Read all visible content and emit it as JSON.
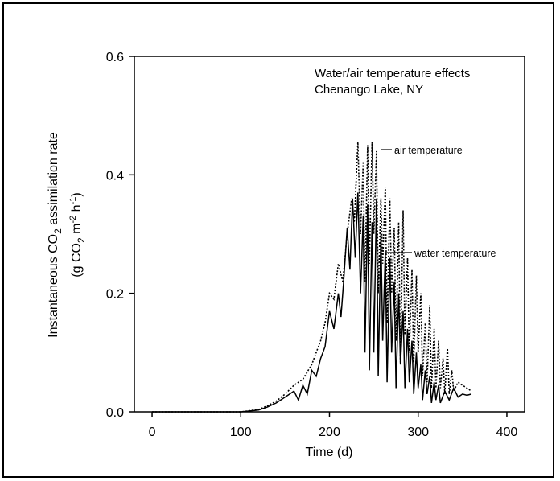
{
  "chart_data": {
    "type": "line",
    "title_lines": [
      "Water/air temperature effects",
      "Chenango Lake, NY"
    ],
    "xlabel": "Time (d)",
    "ylabel_line1": {
      "pre": "Instantaneous CO",
      "sub": "2",
      "post": " assimilation rate"
    },
    "ylabel_line2": {
      "a": "(g CO",
      "sub": "2",
      "b": " m",
      "sup1": "-2",
      "c": " h",
      "sup2": "-1",
      "d": ")"
    },
    "xlim": [
      -20,
      420
    ],
    "ylim": [
      0,
      0.6
    ],
    "xticks": [
      "0",
      "100",
      "200",
      "300",
      "400"
    ],
    "xtick_values": [
      0,
      100,
      200,
      300,
      400
    ],
    "yticks": [
      "0.0",
      "0.2",
      "0.4",
      "0.6"
    ],
    "ytick_values": [
      0,
      0.2,
      0.4,
      0.6
    ],
    "annotations": [
      "air temperature",
      "water temperature"
    ],
    "series": [
      {
        "style": "dotted",
        "color": "#000000",
        "x": [
          0,
          100,
          120,
          130,
          140,
          150,
          160,
          170,
          180,
          185,
          190,
          195,
          200,
          205,
          210,
          215,
          220,
          225,
          228,
          232,
          235,
          238,
          240,
          243,
          245,
          248,
          250,
          253,
          255,
          258,
          260,
          263,
          265,
          268,
          270,
          273,
          275,
          278,
          280,
          283,
          285,
          288,
          290,
          293,
          295,
          298,
          300,
          303,
          305,
          308,
          310,
          313,
          315,
          318,
          320,
          323,
          325,
          328,
          330,
          333,
          335,
          338,
          340,
          345,
          350,
          355,
          360
        ],
        "y": [
          0,
          0,
          0.004,
          0.01,
          0.018,
          0.03,
          0.045,
          0.055,
          0.08,
          0.1,
          0.12,
          0.15,
          0.2,
          0.19,
          0.25,
          0.22,
          0.3,
          0.36,
          0.32,
          0.455,
          0.3,
          0.42,
          0.22,
          0.45,
          0.25,
          0.455,
          0.3,
          0.44,
          0.2,
          0.36,
          0.25,
          0.38,
          0.15,
          0.36,
          0.2,
          0.31,
          0.12,
          0.32,
          0.08,
          0.34,
          0.13,
          0.26,
          0.1,
          0.24,
          0.08,
          0.23,
          0.1,
          0.2,
          0.06,
          0.15,
          0.05,
          0.18,
          0.04,
          0.14,
          0.04,
          0.12,
          0.04,
          0.09,
          0.03,
          0.11,
          0.03,
          0.07,
          0.035,
          0.05,
          0.045,
          0.04,
          0.035
        ]
      },
      {
        "style": "solid",
        "color": "#000000",
        "x": [
          0,
          100,
          120,
          130,
          140,
          150,
          160,
          165,
          170,
          175,
          180,
          185,
          190,
          195,
          200,
          205,
          210,
          213,
          216,
          220,
          223,
          226,
          229,
          232,
          235,
          238,
          240,
          243,
          245,
          248,
          250,
          253,
          255,
          258,
          260,
          263,
          265,
          268,
          270,
          273,
          275,
          278,
          280,
          283,
          285,
          288,
          290,
          293,
          295,
          298,
          300,
          303,
          305,
          308,
          310,
          313,
          315,
          318,
          320,
          323,
          325,
          330,
          335,
          340,
          345,
          350,
          355,
          360
        ],
        "y": [
          0,
          0,
          0.003,
          0.008,
          0.015,
          0.025,
          0.035,
          0.02,
          0.045,
          0.03,
          0.07,
          0.06,
          0.09,
          0.11,
          0.17,
          0.14,
          0.2,
          0.16,
          0.22,
          0.31,
          0.24,
          0.36,
          0.26,
          0.37,
          0.2,
          0.33,
          0.1,
          0.35,
          0.07,
          0.32,
          0.1,
          0.36,
          0.06,
          0.3,
          0.12,
          0.27,
          0.05,
          0.26,
          0.1,
          0.22,
          0.04,
          0.2,
          0.08,
          0.17,
          0.04,
          0.14,
          0.05,
          0.12,
          0.03,
          0.1,
          0.04,
          0.08,
          0.02,
          0.07,
          0.03,
          0.06,
          0.015,
          0.05,
          0.02,
          0.045,
          0.015,
          0.035,
          0.02,
          0.04,
          0.025,
          0.03,
          0.028,
          0.03
        ]
      }
    ]
  }
}
